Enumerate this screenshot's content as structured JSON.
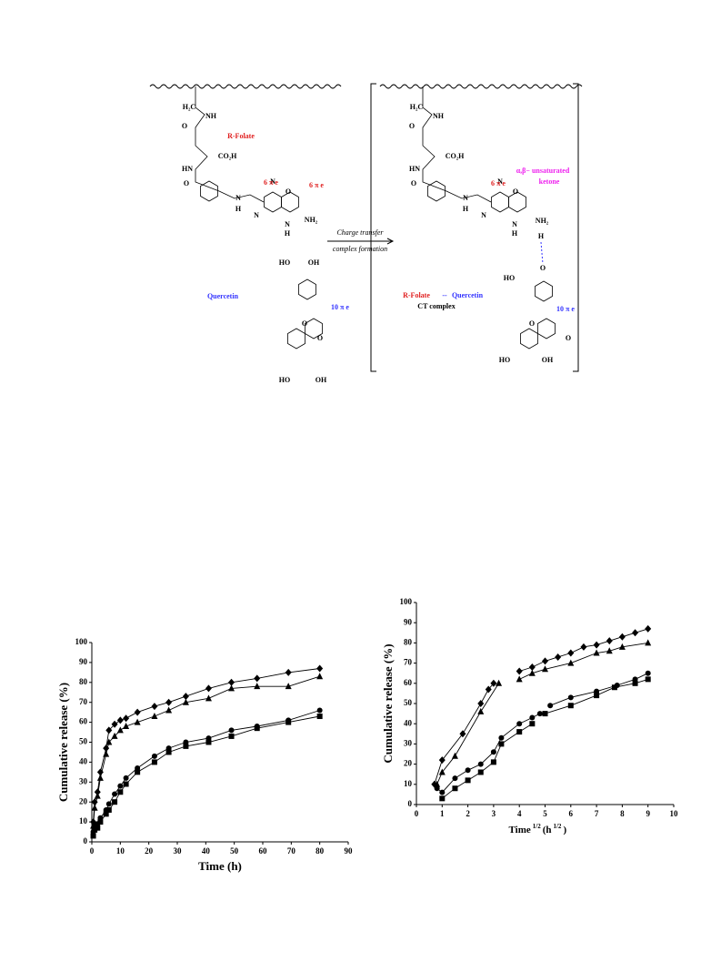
{
  "scheme": {
    "left_labels": [
      "H₂C",
      "NH",
      "O",
      "R-Folate",
      "CO₂H",
      "HN",
      "O",
      "N",
      "H",
      "N",
      "N",
      "O",
      "6 π e",
      "6 π e",
      "N",
      "H",
      "NH₂",
      "Quercetin",
      "HO",
      "OH",
      "10 π e",
      "O",
      "HO",
      "OH",
      "O"
    ],
    "arrow_top": "Charge transfer",
    "arrow_bottom": "complex formation",
    "right_labels": [
      "H₂C",
      "NH",
      "O",
      "CO₂H",
      "HN",
      "O",
      "N",
      "H",
      "N",
      "N",
      "O",
      "6 π e",
      "α,β− unsaturated",
      "ketone",
      "N",
      "H",
      "NH₂",
      "H",
      "O",
      "HO",
      "10 π e",
      "R-Folate",
      "--",
      "Quercetin",
      "CT complex",
      "O",
      "O",
      "HO",
      "OH"
    ]
  },
  "chart_data": [
    {
      "type": "line",
      "ylabel": "Cumulative release (%)",
      "xlabel": "Time (h)",
      "x": [
        0.5,
        1,
        2,
        3,
        5,
        6,
        8,
        10,
        12,
        16,
        22,
        27,
        33,
        41,
        49,
        58,
        69,
        80
      ],
      "series": [
        {
          "marker": "diamond",
          "color": "#000000",
          "values": [
            10,
            20,
            25,
            35,
            47,
            56,
            59,
            61,
            62,
            65,
            68,
            70,
            73,
            77,
            80,
            82,
            85,
            87
          ]
        },
        {
          "marker": "triangle",
          "color": "#000000",
          "values": [
            8,
            17,
            23,
            32,
            44,
            50,
            53,
            56,
            58,
            60,
            63,
            66,
            70,
            72,
            77,
            78,
            78,
            83
          ]
        },
        {
          "marker": "circle",
          "color": "#000000",
          "values": [
            5,
            8,
            9,
            12,
            16,
            19,
            24,
            28,
            32,
            37,
            43,
            47,
            50,
            52,
            56,
            58,
            61,
            66
          ]
        },
        {
          "marker": "square",
          "color": "#000000",
          "values": [
            3,
            6,
            7,
            10,
            14,
            16,
            20,
            25,
            29,
            35,
            40,
            45,
            48,
            50,
            53,
            57,
            60,
            63
          ]
        }
      ],
      "xlim": [
        0,
        90
      ],
      "xticks": [
        0,
        10,
        20,
        30,
        40,
        50,
        60,
        70,
        80,
        90
      ],
      "ylim": [
        0,
        100
      ],
      "yticks": [
        0,
        10,
        20,
        30,
        40,
        50,
        60,
        70,
        80,
        90,
        100
      ]
    },
    {
      "type": "line",
      "ylabel": "Cumulative release (%)",
      "xlabel_parts": [
        "Time",
        "1/2",
        "(h",
        "1/2",
        ")"
      ],
      "series": [
        {
          "marker": "diamond",
          "color": "#000000",
          "x": [
            0.7,
            1,
            1.8,
            2.5,
            2.8,
            3,
            null,
            4,
            4.5,
            5,
            5.5,
            6,
            6.5,
            7,
            7.5,
            8,
            8.5,
            9
          ],
          "values": [
            10,
            22,
            35,
            50,
            57,
            60,
            null,
            66,
            68,
            71,
            73,
            75,
            78,
            79,
            81,
            83,
            85,
            87
          ]
        },
        {
          "marker": "triangle",
          "color": "#000000",
          "x": [
            0.8,
            1,
            1.5,
            2.5,
            3.2,
            null,
            4,
            4.5,
            5,
            6,
            7,
            7.5,
            8,
            9
          ],
          "values": [
            10,
            16,
            24,
            46,
            60,
            null,
            62,
            65,
            67,
            70,
            75,
            76,
            78,
            80
          ]
        },
        {
          "marker": "circle",
          "color": "#000000",
          "x": [
            0.8,
            1,
            1.5,
            2,
            2.5,
            3,
            3.3,
            4,
            4.5,
            4.8,
            null,
            5.2,
            6,
            7,
            7.8,
            8.5,
            9
          ],
          "values": [
            8,
            6,
            13,
            17,
            20,
            26,
            33,
            40,
            43,
            45,
            null,
            49,
            53,
            56,
            59,
            62,
            65
          ]
        },
        {
          "marker": "square",
          "color": "#000000",
          "x": [
            1,
            1.5,
            2,
            2.5,
            3,
            3.3,
            4,
            4.5,
            null,
            5,
            6,
            7,
            7.7,
            8.5,
            9
          ],
          "values": [
            3,
            8,
            12,
            16,
            21,
            30,
            36,
            40,
            null,
            45,
            49,
            54,
            58,
            60,
            62
          ]
        }
      ],
      "xlim": [
        0,
        10
      ],
      "xticks": [
        0,
        1,
        2,
        3,
        4,
        5,
        6,
        7,
        8,
        9,
        10
      ],
      "ylim": [
        0,
        100
      ],
      "yticks": [
        0,
        10,
        20,
        30,
        40,
        50,
        60,
        70,
        80,
        90,
        100
      ]
    }
  ]
}
